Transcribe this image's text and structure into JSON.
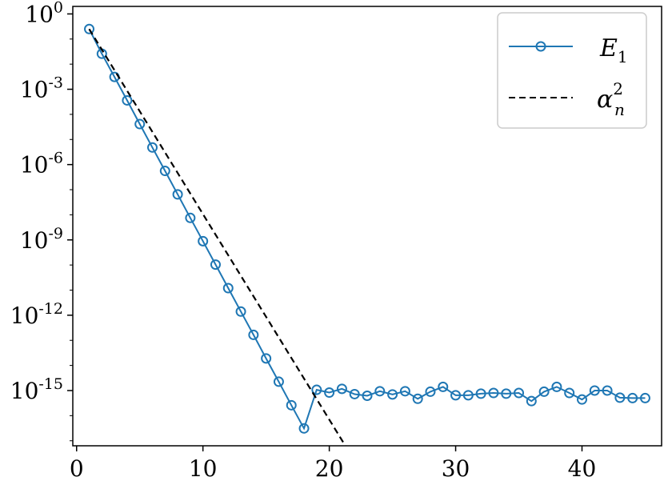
{
  "chart_data": {
    "type": "line",
    "title": "",
    "xlabel": "",
    "ylabel": "",
    "xlim": [
      -0.3,
      46.3
    ],
    "ylim_log10": [
      -17.2,
      0.3
    ],
    "y_scale": "log",
    "grid": false,
    "legend_position": "top-right",
    "x_ticks": [
      {
        "value": 0,
        "label": "0"
      },
      {
        "value": 10,
        "label": "10"
      },
      {
        "value": 20,
        "label": "20"
      },
      {
        "value": 30,
        "label": "30"
      },
      {
        "value": 40,
        "label": "40"
      }
    ],
    "y_ticks": [
      {
        "value": 1.0,
        "base": "10",
        "exp": "0"
      },
      {
        "value": 0.001,
        "base": "10",
        "exp": "-3"
      },
      {
        "value": 1e-06,
        "base": "10",
        "exp": "-6"
      },
      {
        "value": 1e-09,
        "base": "10",
        "exp": "-9"
      },
      {
        "value": 1e-12,
        "base": "10",
        "exp": "-12"
      },
      {
        "value": 1e-15,
        "base": "10",
        "exp": "-15"
      }
    ],
    "series": [
      {
        "name": "E_1",
        "legend_main": "E",
        "legend_sub": "1",
        "color": "#1f77b4",
        "style": "solid-line-open-circles",
        "x": [
          1,
          2,
          3,
          4,
          5,
          6,
          7,
          8,
          9,
          10,
          11,
          12,
          13,
          14,
          15,
          16,
          17,
          18,
          19,
          20,
          21,
          22,
          23,
          24,
          25,
          26,
          27,
          28,
          29,
          30,
          31,
          32,
          33,
          34,
          35,
          36,
          37,
          38,
          39,
          40,
          41,
          42,
          43,
          44,
          45
        ],
        "y": [
          0.25,
          0.026,
          0.0031,
          0.00036,
          4.1e-05,
          4.8e-06,
          5.6e-07,
          6.5e-08,
          7.5e-09,
          8.9e-10,
          1.04e-10,
          1.2e-11,
          1.4e-12,
          1.65e-13,
          1.9e-14,
          2.25e-15,
          2.6e-16,
          3.1e-17,
          1.07e-15,
          8.3e-16,
          1.17e-15,
          7.2e-16,
          6.2e-16,
          9.4e-16,
          7e-16,
          9.4e-16,
          4.7e-16,
          9e-16,
          1.4e-15,
          6.5e-16,
          6.5e-16,
          7.5e-16,
          8e-16,
          7.5e-16,
          8e-16,
          3.8e-16,
          9e-16,
          1.4e-15,
          8e-16,
          4.4e-16,
          1e-15,
          1e-15,
          5.2e-16,
          5e-16,
          5e-16
        ]
      },
      {
        "name": "alpha_n^2",
        "legend_main": "α",
        "legend_sub": "n",
        "legend_sup": "2",
        "color": "#000000",
        "style": "dashed",
        "x": [
          1,
          22
        ],
        "y": [
          0.25,
          1.6e-18
        ]
      }
    ]
  }
}
